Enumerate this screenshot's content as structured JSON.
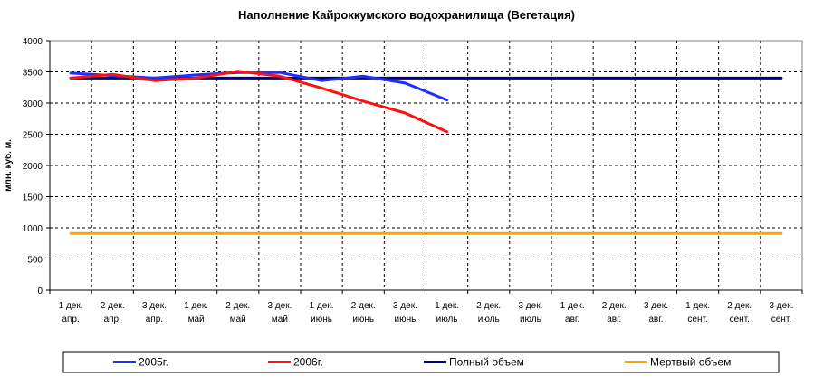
{
  "chart_data": {
    "type": "line",
    "title": "Наполнение Кайроккумского водохранилища (Вегетация)",
    "ylabel": "млн. куб. м.",
    "ylim": [
      0,
      4000
    ],
    "yticks": [
      0,
      500,
      1000,
      1500,
      2000,
      2500,
      3000,
      3500,
      4000
    ],
    "grid": true,
    "legend_position": "bottom",
    "categories": [
      [
        "1 дек.",
        "апр."
      ],
      [
        "2 дек.",
        "апр."
      ],
      [
        "3 дек.",
        "апр."
      ],
      [
        "1 дек.",
        "май"
      ],
      [
        "2 дек.",
        "май"
      ],
      [
        "3 дек.",
        "май"
      ],
      [
        "1 дек.",
        "июнь"
      ],
      [
        "2 дек.",
        "июнь"
      ],
      [
        "3 дек.",
        "июнь"
      ],
      [
        "1 дек.",
        "июль"
      ],
      [
        "2 дек.",
        "июль"
      ],
      [
        "3 дек.",
        "июль"
      ],
      [
        "1 дек.",
        "авг."
      ],
      [
        "2 дек.",
        "авг."
      ],
      [
        "3 дек.",
        "авг."
      ],
      [
        "1 дек.",
        "сент."
      ],
      [
        "2 дек.",
        "сент."
      ],
      [
        "3 дек.",
        "сент."
      ]
    ],
    "series": [
      {
        "name": "2005г.",
        "color": "#1f2eff",
        "values": [
          3480,
          3440,
          3400,
          3450,
          3490,
          3490,
          3360,
          3430,
          3320,
          3050,
          null,
          null,
          null,
          null,
          null,
          null,
          null,
          null
        ]
      },
      {
        "name": "2006г.",
        "color": "#ff1010",
        "values": [
          3400,
          3460,
          3360,
          3400,
          3510,
          3430,
          3240,
          3030,
          2840,
          2540,
          null,
          null,
          null,
          null,
          null,
          null,
          null,
          null
        ]
      },
      {
        "name": "Полный объем",
        "color": "#000080",
        "values": [
          3400,
          3400,
          3400,
          3400,
          3400,
          3400,
          3400,
          3400,
          3400,
          3400,
          3400,
          3400,
          3400,
          3400,
          3400,
          3400,
          3400,
          3400
        ]
      },
      {
        "name": "Мертвый объем",
        "color": "#ffa500",
        "values": [
          910,
          910,
          910,
          910,
          910,
          910,
          910,
          910,
          910,
          910,
          910,
          910,
          910,
          910,
          910,
          910,
          910,
          910
        ]
      }
    ]
  }
}
